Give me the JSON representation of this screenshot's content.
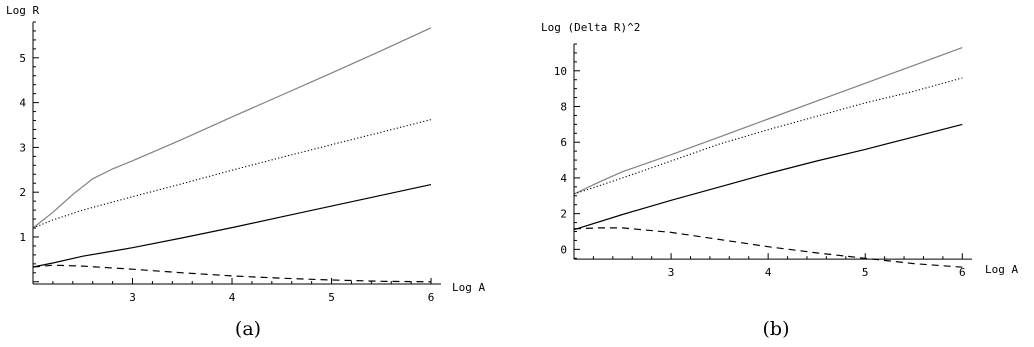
{
  "chart_data": [
    {
      "type": "line",
      "panel_label": "(a)",
      "xlabel": "Log A",
      "ylabel": "Log R",
      "xlim": [
        2.0,
        6.1
      ],
      "ylim": [
        -0.05,
        5.8
      ],
      "x_ticks": [
        3,
        4,
        5,
        6
      ],
      "x_tick_labels": [
        "3",
        "4",
        "5",
        "6"
      ],
      "y_ticks": [
        1,
        2,
        3,
        4,
        5
      ],
      "y_tick_labels": [
        "1",
        "2",
        "3",
        "4",
        "5"
      ],
      "series": [
        {
          "style": "solid-gray",
          "color": "#808080",
          "points": [
            [
              2.0,
              1.2
            ],
            [
              2.2,
              1.55
            ],
            [
              2.4,
              1.95
            ],
            [
              2.6,
              2.3
            ],
            [
              2.8,
              2.52
            ],
            [
              3.0,
              2.7
            ],
            [
              3.5,
              3.18
            ],
            [
              4.0,
              3.68
            ],
            [
              4.5,
              4.17
            ],
            [
              5.0,
              4.66
            ],
            [
              5.5,
              5.16
            ],
            [
              6.0,
              5.67
            ]
          ]
        },
        {
          "style": "dotted",
          "color": "#000000",
          "points": [
            [
              2.0,
              1.2
            ],
            [
              2.2,
              1.38
            ],
            [
              2.5,
              1.6
            ],
            [
              3.0,
              1.9
            ],
            [
              3.5,
              2.19
            ],
            [
              4.0,
              2.49
            ],
            [
              4.5,
              2.78
            ],
            [
              5.0,
              3.06
            ],
            [
              5.5,
              3.34
            ],
            [
              6.0,
              3.62
            ]
          ]
        },
        {
          "style": "solid",
          "color": "#000000",
          "points": [
            [
              2.0,
              0.33
            ],
            [
              2.2,
              0.42
            ],
            [
              2.5,
              0.57
            ],
            [
              3.0,
              0.76
            ],
            [
              3.5,
              0.98
            ],
            [
              4.0,
              1.21
            ],
            [
              4.5,
              1.45
            ],
            [
              5.0,
              1.69
            ],
            [
              5.5,
              1.93
            ],
            [
              6.0,
              2.17
            ]
          ]
        },
        {
          "style": "dashed",
          "color": "#000000",
          "points": [
            [
              2.0,
              0.33
            ],
            [
              2.2,
              0.37
            ],
            [
              2.5,
              0.35
            ],
            [
              3.0,
              0.28
            ],
            [
              3.5,
              0.2
            ],
            [
              4.0,
              0.13
            ],
            [
              4.5,
              0.08
            ],
            [
              5.0,
              0.04
            ],
            [
              5.5,
              0.01
            ],
            [
              6.0,
              0.0
            ]
          ]
        }
      ]
    },
    {
      "type": "line",
      "panel_label": "(b)",
      "xlabel": "Log A",
      "ylabel": "Log (Delta R)^2",
      "xlim": [
        2.0,
        6.1
      ],
      "ylim": [
        -1.1,
        11.5
      ],
      "x_ticks": [
        3,
        4,
        5,
        6
      ],
      "x_tick_labels": [
        "3",
        "4",
        "5",
        "6"
      ],
      "y_ticks": [
        0,
        2,
        4,
        6,
        8,
        10
      ],
      "y_tick_labels": [
        "0",
        "2",
        "4",
        "6",
        "8",
        "10"
      ],
      "series": [
        {
          "style": "solid-gray",
          "color": "#808080",
          "points": [
            [
              2.0,
              3.1
            ],
            [
              2.25,
              3.75
            ],
            [
              2.5,
              4.35
            ],
            [
              3.0,
              5.3
            ],
            [
              3.5,
              6.3
            ],
            [
              4.0,
              7.3
            ],
            [
              4.5,
              8.3
            ],
            [
              5.0,
              9.3
            ],
            [
              5.5,
              10.3
            ],
            [
              6.0,
              11.3
            ]
          ]
        },
        {
          "style": "dotted",
          "color": "#000000",
          "points": [
            [
              2.0,
              3.1
            ],
            [
              2.25,
              3.55
            ],
            [
              2.5,
              4.0
            ],
            [
              3.0,
              4.95
            ],
            [
              3.5,
              5.9
            ],
            [
              4.0,
              6.7
            ],
            [
              4.5,
              7.45
            ],
            [
              5.0,
              8.2
            ],
            [
              5.5,
              8.85
            ],
            [
              6.0,
              9.6
            ]
          ]
        },
        {
          "style": "solid",
          "color": "#000000",
          "points": [
            [
              2.0,
              1.1
            ],
            [
              2.5,
              1.95
            ],
            [
              3.0,
              2.75
            ],
            [
              3.5,
              3.5
            ],
            [
              4.0,
              4.25
            ],
            [
              4.5,
              4.95
            ],
            [
              5.0,
              5.6
            ],
            [
              5.5,
              6.3
            ],
            [
              6.0,
              7.0
            ]
          ]
        },
        {
          "style": "dashed",
          "color": "#000000",
          "points": [
            [
              2.0,
              1.15
            ],
            [
              2.25,
              1.2
            ],
            [
              2.5,
              1.2
            ],
            [
              3.0,
              0.95
            ],
            [
              3.5,
              0.55
            ],
            [
              4.0,
              0.15
            ],
            [
              4.5,
              -0.2
            ],
            [
              5.0,
              -0.5
            ],
            [
              5.5,
              -0.8
            ],
            [
              6.0,
              -1.0
            ]
          ]
        }
      ]
    }
  ]
}
